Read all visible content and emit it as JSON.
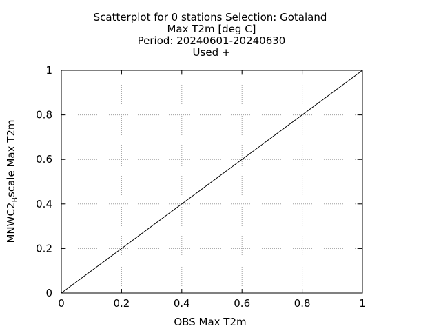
{
  "chart_data": {
    "type": "scatter",
    "title_lines": [
      "Scatterplot for    0 stations Selection: Gotaland",
      "Max T2m [deg C]",
      "Period: 20240601-20240630",
      "Used  +"
    ],
    "xlabel": "OBS Max T2m",
    "ylabel": {
      "prefix": "MNWC2",
      "subscript": "B",
      "suffix": "scale Max T2m"
    },
    "xlim": [
      0,
      1
    ],
    "ylim": [
      0,
      1
    ],
    "x_ticks": [
      0,
      0.2,
      0.4,
      0.6,
      0.8,
      1
    ],
    "y_ticks": [
      0,
      0.2,
      0.4,
      0.6,
      0.8,
      1
    ],
    "x_tick_labels": [
      "0",
      "0.2",
      "0.4",
      "0.6",
      "0.8",
      "1"
    ],
    "y_tick_labels": [
      "0",
      "0.2",
      "0.4",
      "0.6",
      "0.8",
      "1"
    ],
    "grid": true,
    "points": [],
    "reference_line": {
      "x": [
        0,
        1
      ],
      "y": [
        0,
        1
      ]
    },
    "colors": {
      "axis": "#000000",
      "grid": "#a0a0a0",
      "line": "#000000"
    }
  }
}
